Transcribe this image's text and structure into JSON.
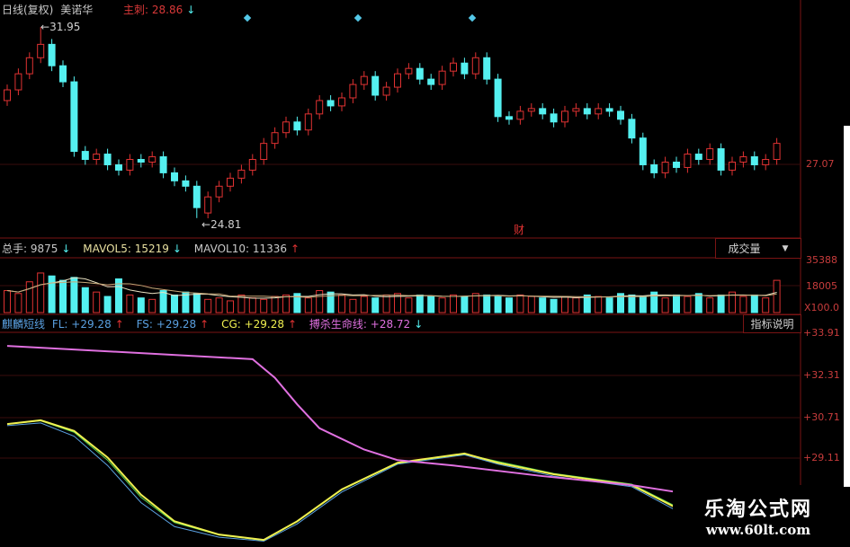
{
  "header": {
    "period": "日线(复权)",
    "stock": "美诺华",
    "main_label": "主刺: 28.86",
    "main_arrow": "↓"
  },
  "volume_header": {
    "total": "总手: 9875",
    "total_arrow": "↓",
    "mavol5": "MAVOL5: 15219",
    "mavol5_arrow": "↓",
    "mavol10": "MAVOL10: 11336",
    "mavol10_arrow": "↑",
    "dropdown": "成交量",
    "dropdown_icon": "▼"
  },
  "indicator_header": {
    "name": "麒麟短线",
    "fl": "FL: +29.28",
    "fl_arrow": "↑",
    "fs": "FS: +29.28",
    "fs_arrow": "↑",
    "cg": "CG: +29.28",
    "cg_arrow": "↑",
    "life": "搏杀生命线: +28.72",
    "life_arrow": "↓",
    "help_button": "指标说明"
  },
  "annotations": {
    "high": "31.95",
    "low": "24.81",
    "finance_marker": "财"
  },
  "watermark": {
    "title": "乐淘公式网",
    "url": "www.60lt.com"
  },
  "colors": {
    "up": "#e03232",
    "down": "#54f0f0",
    "grid": "#7a1414",
    "life_line": "#e070e0",
    "fl_line": "#f0f050",
    "fs_line": "#5aa0e0",
    "cg_line": "#50d050"
  },
  "chart_data": [
    {
      "type": "candlestick",
      "price_axis_ticks": [
        "27.07"
      ],
      "ylim": [
        24.5,
        32.5
      ],
      "open": [
        29.2,
        29.6,
        30.2,
        30.8,
        31.3,
        30.5,
        29.9,
        27.3,
        27.0,
        27.2,
        26.8,
        26.6,
        27.0,
        26.9,
        27.1,
        26.5,
        26.2,
        26.0,
        25.0,
        25.6,
        26.0,
        26.3,
        26.6,
        27.0,
        27.6,
        28.0,
        28.4,
        28.1,
        28.7,
        29.2,
        29.0,
        29.3,
        29.8,
        30.1,
        29.4,
        29.7,
        30.2,
        30.4,
        30.0,
        29.8,
        30.3,
        30.6,
        30.2,
        30.8,
        30.0,
        28.6,
        28.5,
        28.8,
        28.9,
        28.7,
        28.4,
        28.8,
        28.9,
        28.7,
        28.9,
        28.8,
        28.5,
        27.8,
        26.8,
        26.5,
        26.9,
        26.7,
        27.2,
        27.0,
        27.4,
        26.6,
        26.9,
        27.1,
        26.8,
        27.0
      ],
      "close": [
        29.6,
        30.2,
        30.8,
        31.3,
        30.5,
        29.9,
        27.3,
        27.0,
        27.2,
        26.8,
        26.6,
        27.0,
        26.9,
        27.1,
        26.5,
        26.2,
        26.0,
        25.2,
        25.6,
        26.0,
        26.3,
        26.6,
        27.0,
        27.6,
        28.0,
        28.4,
        28.1,
        28.7,
        29.2,
        29.0,
        29.3,
        29.8,
        30.1,
        29.4,
        29.7,
        30.2,
        30.4,
        30.0,
        29.8,
        30.3,
        30.6,
        30.2,
        30.8,
        30.0,
        28.6,
        28.5,
        28.8,
        28.9,
        28.7,
        28.4,
        28.8,
        28.9,
        28.7,
        28.9,
        28.8,
        28.5,
        27.8,
        26.8,
        26.5,
        26.9,
        26.7,
        27.2,
        27.0,
        27.4,
        26.6,
        26.9,
        27.1,
        26.8,
        27.0,
        27.6
      ],
      "high_index": 3,
      "high_value": 31.95,
      "low_index": 17,
      "low_value": 24.81
    },
    {
      "type": "bar",
      "name": "成交量",
      "axis_ticks": [
        "35388",
        "18005",
        "X100.0"
      ],
      "ylim": [
        0,
        38000
      ],
      "values": [
        15000,
        13000,
        21000,
        27000,
        25000,
        22000,
        24000,
        17000,
        14000,
        11000,
        23000,
        12000,
        10000,
        9000,
        15000,
        12000,
        14000,
        13000,
        9000,
        10000,
        8000,
        12000,
        10000,
        9000,
        11000,
        12000,
        13000,
        10000,
        15000,
        14000,
        12000,
        9000,
        11000,
        10000,
        12000,
        13000,
        10000,
        12000,
        11000,
        10000,
        12000,
        11000,
        13000,
        12000,
        11000,
        10000,
        12000,
        11000,
        10000,
        9000,
        11000,
        10000,
        12000,
        11000,
        10000,
        13000,
        12000,
        11000,
        14000,
        10000,
        12000,
        11000,
        13000,
        10000,
        12000,
        14000,
        11000,
        12000,
        10000,
        22000
      ]
    },
    {
      "type": "line",
      "axis_ticks": [
        "+33.91",
        "+32.31",
        "+30.71",
        "+29.11"
      ],
      "ylim": [
        25.8,
        34.3
      ],
      "series": [
        {
          "name": "搏杀生命线",
          "points": [
            [
              0,
              33.4
            ],
            [
              22,
              32.9
            ],
            [
              24,
              32.2
            ],
            [
              26,
              31.2
            ],
            [
              28,
              30.3
            ],
            [
              32,
              29.5
            ],
            [
              35,
              29.1
            ],
            [
              40,
              28.9
            ],
            [
              48,
              28.5
            ],
            [
              56,
              28.16
            ],
            [
              60,
              27.9
            ],
            [
              69,
              27.85
            ]
          ]
        },
        {
          "name": "FL",
          "points": [
            [
              0,
              30.46
            ],
            [
              3,
              30.6
            ],
            [
              6,
              30.2
            ],
            [
              9,
              29.2
            ],
            [
              12,
              27.8
            ],
            [
              15,
              26.8
            ],
            [
              19,
              26.3
            ],
            [
              23,
              26.1
            ],
            [
              26,
              26.8
            ],
            [
              30,
              28.0
            ],
            [
              35,
              29.0
            ],
            [
              41,
              29.35
            ],
            [
              44,
              29.0
            ],
            [
              49,
              28.57
            ],
            [
              56,
              28.16
            ],
            [
              60,
              27.3
            ],
            [
              69,
              26.9
            ]
          ]
        },
        {
          "name": "FS",
          "points": [
            [
              0,
              30.4
            ],
            [
              3,
              30.5
            ],
            [
              6,
              30.0
            ],
            [
              9,
              28.9
            ],
            [
              12,
              27.5
            ],
            [
              15,
              26.6
            ],
            [
              19,
              26.2
            ],
            [
              23,
              26.05
            ],
            [
              26,
              26.7
            ],
            [
              30,
              27.9
            ],
            [
              35,
              28.95
            ],
            [
              41,
              29.3
            ],
            [
              44,
              28.95
            ],
            [
              49,
              28.5
            ],
            [
              56,
              28.1
            ],
            [
              60,
              27.2
            ],
            [
              69,
              26.8
            ]
          ]
        },
        {
          "name": "CG",
          "points": [
            [
              0,
              30.45
            ],
            [
              3,
              30.58
            ],
            [
              6,
              30.15
            ],
            [
              9,
              29.1
            ],
            [
              12,
              27.7
            ],
            [
              15,
              26.75
            ],
            [
              19,
              26.28
            ],
            [
              23,
              26.08
            ],
            [
              26,
              26.78
            ],
            [
              30,
              27.98
            ],
            [
              35,
              28.98
            ],
            [
              41,
              29.33
            ],
            [
              44,
              29.05
            ],
            [
              49,
              28.6
            ],
            [
              56,
              28.2
            ],
            [
              60,
              27.35
            ],
            [
              69,
              26.95
            ]
          ]
        }
      ]
    }
  ]
}
